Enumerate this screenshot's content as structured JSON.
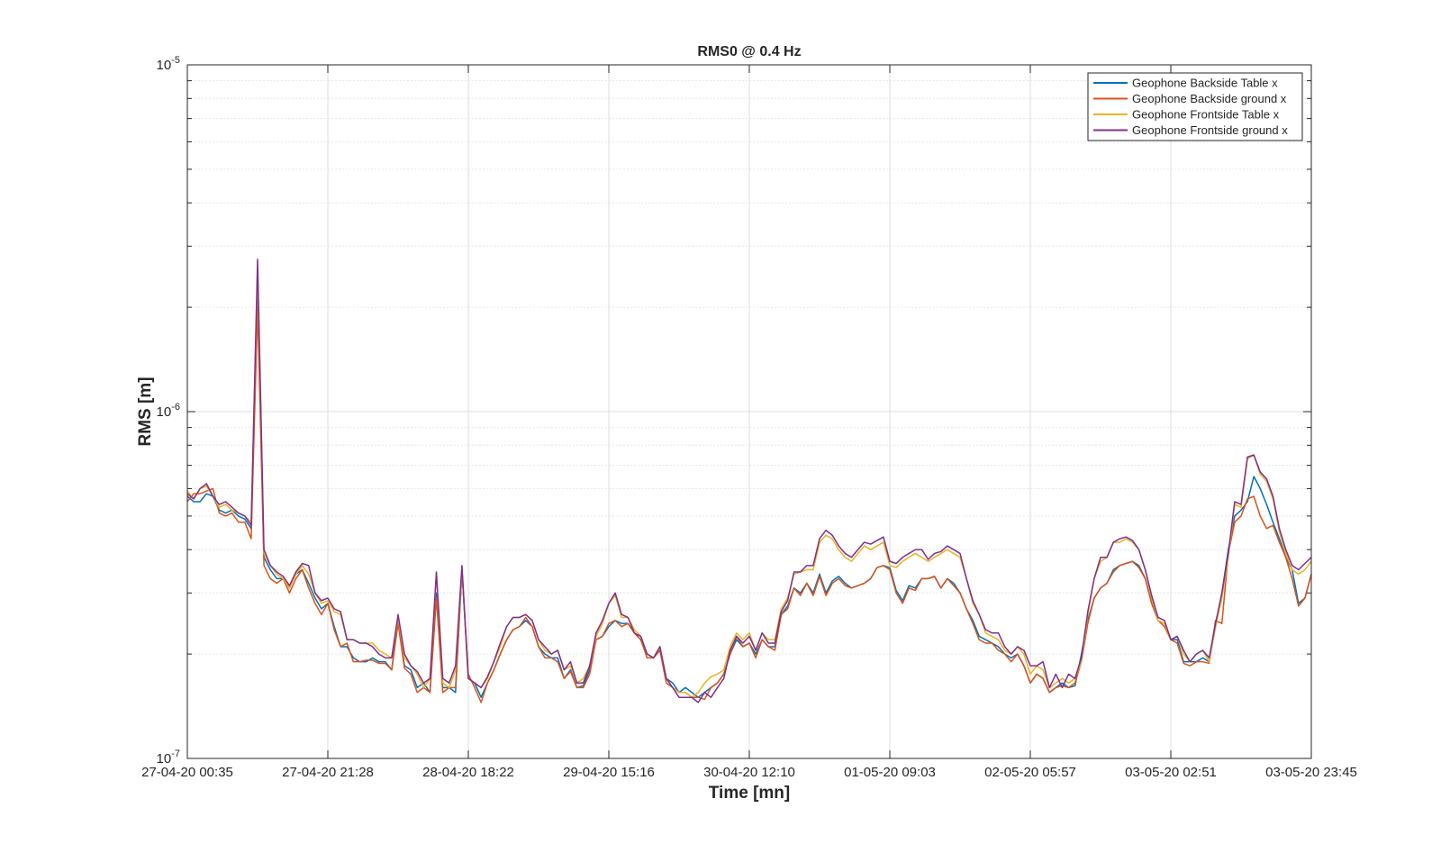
{
  "chart_data": {
    "type": "line",
    "title": "RMS0 @ 0.4 Hz",
    "xlabel": "Time [mn]",
    "ylabel": "RMS [m]",
    "yscale": "log",
    "ylim": [
      1e-07,
      1e-05
    ],
    "ytick_base": "10",
    "yticks": [
      {
        "exp": "-7",
        "value": 1e-07
      },
      {
        "exp": "-6",
        "value": 1e-06
      },
      {
        "exp": "-5",
        "value": 1e-05
      }
    ],
    "xlim": [
      "27-04-20 00:35",
      "03-05-20 23:45"
    ],
    "xticks": [
      "27-04-20 00:35",
      "27-04-20 21:28",
      "28-04-20 18:22",
      "29-04-20 15:16",
      "30-04-20 12:10",
      "01-05-20 09:03",
      "02-05-20 05:57",
      "03-05-20 02:51",
      "03-05-20 23:45"
    ],
    "grid": true,
    "legend_position": "top-right",
    "x_sample_interval": "00:35 steps of ~52 min over 27-04-20 00:35 to 03-05-20 23:45",
    "series": [
      {
        "name": "Geophone Backside Table x",
        "color": "#0072BD",
        "values": [
          5.7e-07,
          5.5e-07,
          5.5e-07,
          5.8e-07,
          5.7e-07,
          5.2e-07,
          5.1e-07,
          5.2e-07,
          5e-07,
          4.9e-07,
          4.6e-07,
          2.5e-06,
          3.8e-07,
          3.5e-07,
          3.3e-07,
          3.3e-07,
          3.1e-07,
          3.4e-07,
          3.5e-07,
          3.2e-07,
          2.9e-07,
          2.7e-07,
          2.8e-07,
          2.4e-07,
          2.1e-07,
          2.1e-07,
          1.95e-07,
          1.9e-07,
          1.9e-07,
          1.95e-07,
          1.9e-07,
          1.9e-07,
          1.8e-07,
          2.5e-07,
          1.85e-07,
          1.8e-07,
          1.6e-07,
          1.65e-07,
          1.55e-07,
          3e-07,
          1.6e-07,
          1.6e-07,
          1.55e-07,
          3.5e-07,
          1.7e-07,
          1.65e-07,
          1.5e-07,
          1.65e-07,
          1.8e-07,
          2e-07,
          2.2e-07,
          2.35e-07,
          2.4e-07,
          2.5e-07,
          2.4e-07,
          2.1e-07,
          2e-07,
          1.95e-07,
          1.95e-07,
          1.7e-07,
          1.8e-07,
          1.6e-07,
          1.62e-07,
          1.8e-07,
          2.2e-07,
          2.25e-07,
          2.4e-07,
          2.5e-07,
          2.45e-07,
          2.45e-07,
          2.3e-07,
          2.2e-07,
          2e-07,
          1.95e-07,
          2.05e-07,
          1.7e-07,
          1.65e-07,
          1.55e-07,
          1.6e-07,
          1.55e-07,
          1.5e-07,
          1.55e-07,
          1.6e-07,
          1.65e-07,
          1.75e-07,
          2e-07,
          2.2e-07,
          2.1e-07,
          2.15e-07,
          2e-07,
          2.2e-07,
          2.1e-07,
          2.1e-07,
          2.6e-07,
          2.75e-07,
          3.1e-07,
          3e-07,
          3.2e-07,
          3e-07,
          3.4e-07,
          3e-07,
          3.25e-07,
          3.35e-07,
          3.2e-07,
          3.1e-07,
          3.15e-07,
          3.2e-07,
          3.3e-07,
          3.55e-07,
          3.6e-07,
          3.55e-07,
          3.05e-07,
          2.85e-07,
          3.15e-07,
          3.1e-07,
          3.3e-07,
          3.3e-07,
          3.35e-07,
          3.1e-07,
          3.3e-07,
          3.2e-07,
          3e-07,
          2.7e-07,
          2.5e-07,
          2.25e-07,
          2.2e-07,
          2.15e-07,
          2.1e-07,
          2e-07,
          1.95e-07,
          2e-07,
          1.85e-07,
          1.65e-07,
          1.75e-07,
          1.7e-07,
          1.55e-07,
          1.6e-07,
          1.65e-07,
          1.6e-07,
          1.62e-07,
          2e-07,
          2.5e-07,
          2.9e-07,
          3.1e-07,
          3.2e-07,
          3.5e-07,
          3.6e-07,
          3.65e-07,
          3.7e-07,
          3.6e-07,
          3.3e-07,
          2.8e-07,
          2.5e-07,
          2.45e-07,
          2.2e-07,
          2.2e-07,
          1.9e-07,
          1.9e-07,
          1.9e-07,
          1.95e-07,
          1.9e-07,
          2.4e-07,
          3e-07,
          4e-07,
          5e-07,
          5.2e-07,
          5.5e-07,
          6.5e-07,
          6e-07,
          5.4e-07,
          4.8e-07,
          4.3e-07,
          3.8e-07,
          3.5e-07,
          2.8e-07,
          2.9e-07,
          3.4e-07
        ]
      },
      {
        "name": "Geophone Backside ground x",
        "color": "#D95319",
        "values": [
          5.5e-07,
          5.8e-07,
          5.8e-07,
          5.9e-07,
          6e-07,
          5.1e-07,
          5e-07,
          5.1e-07,
          4.8e-07,
          4.8e-07,
          4.3e-07,
          2e-06,
          3.6e-07,
          3.3e-07,
          3.2e-07,
          3.3e-07,
          3e-07,
          3.3e-07,
          3.5e-07,
          3.1e-07,
          2.8e-07,
          2.6e-07,
          2.8e-07,
          2.35e-07,
          2.1e-07,
          2.15e-07,
          1.9e-07,
          1.9e-07,
          1.92e-07,
          1.92e-07,
          1.88e-07,
          1.88e-07,
          1.8e-07,
          2.45e-07,
          1.82e-07,
          1.75e-07,
          1.55e-07,
          1.6e-07,
          1.55e-07,
          2.9e-07,
          1.55e-07,
          1.6e-07,
          1.6e-07,
          3.5e-07,
          1.75e-07,
          1.6e-07,
          1.45e-07,
          1.65e-07,
          1.8e-07,
          2e-07,
          2.2e-07,
          2.35e-07,
          2.4e-07,
          2.55e-07,
          2.4e-07,
          2.1e-07,
          1.95e-07,
          1.95e-07,
          1.9e-07,
          1.7e-07,
          1.78e-07,
          1.6e-07,
          1.6e-07,
          1.75e-07,
          2.2e-07,
          2.25e-07,
          2.45e-07,
          2.5e-07,
          2.4e-07,
          2.45e-07,
          2.3e-07,
          2.2e-07,
          1.95e-07,
          1.95e-07,
          2.05e-07,
          1.65e-07,
          1.6e-07,
          1.55e-07,
          1.55e-07,
          1.5e-07,
          1.5e-07,
          1.48e-07,
          1.6e-07,
          1.65e-07,
          1.75e-07,
          2e-07,
          2.25e-07,
          2.1e-07,
          2.15e-07,
          1.95e-07,
          2.2e-07,
          2.1e-07,
          2.05e-07,
          2.6e-07,
          2.7e-07,
          3.1e-07,
          2.95e-07,
          3.2e-07,
          2.95e-07,
          3.35e-07,
          2.95e-07,
          3.2e-07,
          3.3e-07,
          3.15e-07,
          3.1e-07,
          3.15e-07,
          3.2e-07,
          3.3e-07,
          3.55e-07,
          3.6e-07,
          3.5e-07,
          3e-07,
          2.8e-07,
          3.1e-07,
          3.05e-07,
          3.3e-07,
          3.3e-07,
          3.35e-07,
          3.1e-07,
          3.3e-07,
          3.15e-07,
          3e-07,
          2.7e-07,
          2.45e-07,
          2.2e-07,
          2.15e-07,
          2.15e-07,
          2.05e-07,
          2e-07,
          1.9e-07,
          2e-07,
          1.85e-07,
          1.65e-07,
          1.75e-07,
          1.7e-07,
          1.55e-07,
          1.6e-07,
          1.62e-07,
          1.6e-07,
          1.65e-07,
          1.9e-07,
          2.45e-07,
          2.9e-07,
          3.1e-07,
          3.2e-07,
          3.45e-07,
          3.6e-07,
          3.65e-07,
          3.7e-07,
          3.55e-07,
          3.3e-07,
          2.8e-07,
          2.5e-07,
          2.4e-07,
          2.2e-07,
          2.15e-07,
          1.88e-07,
          1.85e-07,
          1.9e-07,
          1.9e-07,
          1.88e-07,
          2.5e-07,
          2.45e-07,
          3.9e-07,
          4.8e-07,
          5e-07,
          5.6e-07,
          5.7e-07,
          5e-07,
          4.6e-07,
          4.7e-07,
          4.2e-07,
          3.8e-07,
          3.3e-07,
          2.75e-07,
          2.9e-07,
          3.4e-07
        ]
      },
      {
        "name": "Geophone Frontside Table x",
        "color": "#EDB120",
        "values": [
          5.9e-07,
          5.6e-07,
          6e-07,
          6.1e-07,
          5.7e-07,
          5.3e-07,
          5.4e-07,
          5.2e-07,
          5.1e-07,
          5e-07,
          4.8e-07,
          2.6e-06,
          3.9e-07,
          3.6e-07,
          3.4e-07,
          3.3e-07,
          3.1e-07,
          3.4e-07,
          3.6e-07,
          3.4e-07,
          3e-07,
          2.8e-07,
          2.85e-07,
          2.65e-07,
          2.6e-07,
          2.2e-07,
          2.2e-07,
          2.15e-07,
          2.15e-07,
          2.15e-07,
          2.05e-07,
          2e-07,
          1.95e-07,
          2.55e-07,
          1.95e-07,
          1.85e-07,
          1.75e-07,
          1.6e-07,
          1.7e-07,
          3.4e-07,
          1.65e-07,
          1.6e-07,
          1.8e-07,
          3.55e-07,
          1.7e-07,
          1.65e-07,
          1.6e-07,
          1.7e-07,
          1.9e-07,
          2.1e-07,
          2.4e-07,
          2.55e-07,
          2.55e-07,
          2.6e-07,
          2.5e-07,
          2.2e-07,
          2.05e-07,
          2e-07,
          2.05e-07,
          1.8e-07,
          1.85e-07,
          1.65e-07,
          1.7e-07,
          1.85e-07,
          2.25e-07,
          2.45e-07,
          2.8e-07,
          2.95e-07,
          2.55e-07,
          2.55e-07,
          2.35e-07,
          2.25e-07,
          2e-07,
          1.95e-07,
          2.1e-07,
          1.7e-07,
          1.6e-07,
          1.55e-07,
          1.55e-07,
          1.5e-07,
          1.55e-07,
          1.65e-07,
          1.72e-07,
          1.75e-07,
          1.8e-07,
          2.1e-07,
          2.3e-07,
          2.2e-07,
          2.3e-07,
          2.05e-07,
          2.3e-07,
          2.2e-07,
          2.2e-07,
          2.7e-07,
          2.9e-07,
          3.4e-07,
          3.45e-07,
          3.5e-07,
          3.5e-07,
          4.2e-07,
          4.4e-07,
          4.3e-07,
          4e-07,
          3.8e-07,
          3.7e-07,
          3.9e-07,
          4.1e-07,
          4e-07,
          4.1e-07,
          4.2e-07,
          3.6e-07,
          3.55e-07,
          3.7e-07,
          3.8e-07,
          3.9e-07,
          3.8e-07,
          3.7e-07,
          3.8e-07,
          3.9e-07,
          4e-07,
          3.9e-07,
          3.8e-07,
          3.3e-07,
          2.8e-07,
          2.6e-07,
          2.3e-07,
          2.25e-07,
          2.2e-07,
          2.05e-07,
          2e-07,
          2.1e-07,
          2e-07,
          1.75e-07,
          1.85e-07,
          1.8e-07,
          1.6e-07,
          1.65e-07,
          1.7e-07,
          1.65e-07,
          1.7e-07,
          1.9e-07,
          2.6e-07,
          3.3e-07,
          3.7e-07,
          3.8e-07,
          4.2e-07,
          4.2e-07,
          4.3e-07,
          4.2e-07,
          4e-07,
          3.5e-07,
          2.9e-07,
          2.5e-07,
          2.45e-07,
          2.2e-07,
          2.25e-07,
          2e-07,
          1.9e-07,
          2e-07,
          2.05e-07,
          1.9e-07,
          2.4e-07,
          2.9e-07,
          3.8e-07,
          5.4e-07,
          5.3e-07,
          7.3e-07,
          7.5e-07,
          6.6e-07,
          6.3e-07,
          5.6e-07,
          4.5e-07,
          3.9e-07,
          3.5e-07,
          3.4e-07,
          3.5e-07,
          3.7e-07
        ]
      },
      {
        "name": "Geophone Frontside ground x",
        "color": "#7E2F8E",
        "values": [
          5.8e-07,
          5.6e-07,
          6e-07,
          6.2e-07,
          5.7e-07,
          5.4e-07,
          5.5e-07,
          5.3e-07,
          5.1e-07,
          5e-07,
          4.7e-07,
          2.75e-06,
          4e-07,
          3.6e-07,
          3.45e-07,
          3.35e-07,
          3.15e-07,
          3.45e-07,
          3.65e-07,
          3.6e-07,
          3e-07,
          2.85e-07,
          2.9e-07,
          2.7e-07,
          2.65e-07,
          2.2e-07,
          2.2e-07,
          2.15e-07,
          2.15e-07,
          2.1e-07,
          2e-07,
          1.95e-07,
          1.95e-07,
          2.6e-07,
          2e-07,
          1.85e-07,
          1.78e-07,
          1.65e-07,
          1.7e-07,
          3.45e-07,
          1.7e-07,
          1.65e-07,
          1.85e-07,
          3.6e-07,
          1.7e-07,
          1.65e-07,
          1.6e-07,
          1.72e-07,
          1.9e-07,
          2.15e-07,
          2.4e-07,
          2.55e-07,
          2.55e-07,
          2.6e-07,
          2.5e-07,
          2.2e-07,
          2.1e-07,
          2e-07,
          2.05e-07,
          1.8e-07,
          1.9e-07,
          1.65e-07,
          1.65e-07,
          1.85e-07,
          2.3e-07,
          2.5e-07,
          2.8e-07,
          3e-07,
          2.6e-07,
          2.55e-07,
          2.3e-07,
          2.25e-07,
          2e-07,
          1.95e-07,
          2.1e-07,
          1.7e-07,
          1.6e-07,
          1.5e-07,
          1.5e-07,
          1.5e-07,
          1.45e-07,
          1.55e-07,
          1.5e-07,
          1.6e-07,
          1.7e-07,
          2.05e-07,
          2.25e-07,
          2.15e-07,
          2.25e-07,
          2.05e-07,
          2.3e-07,
          2.15e-07,
          2.15e-07,
          2.65e-07,
          2.85e-07,
          3.45e-07,
          3.45e-07,
          3.6e-07,
          3.6e-07,
          4.3e-07,
          4.55e-07,
          4.4e-07,
          4.1e-07,
          3.9e-07,
          3.8e-07,
          4e-07,
          4.2e-07,
          4.15e-07,
          4.25e-07,
          4.35e-07,
          3.7e-07,
          3.65e-07,
          3.8e-07,
          3.9e-07,
          4e-07,
          4e-07,
          3.75e-07,
          3.9e-07,
          3.95e-07,
          4.1e-07,
          4e-07,
          3.9e-07,
          3.3e-07,
          2.85e-07,
          2.6e-07,
          2.35e-07,
          2.3e-07,
          2.3e-07,
          2.1e-07,
          2e-07,
          2.1e-07,
          2.05e-07,
          1.85e-07,
          1.85e-07,
          1.9e-07,
          1.6e-07,
          1.75e-07,
          1.6e-07,
          1.75e-07,
          1.7e-07,
          1.95e-07,
          2.65e-07,
          3.3e-07,
          3.8e-07,
          3.8e-07,
          4.2e-07,
          4.3e-07,
          4.35e-07,
          4.25e-07,
          4e-07,
          3.5e-07,
          2.95e-07,
          2.55e-07,
          2.5e-07,
          2.2e-07,
          2.25e-07,
          2.05e-07,
          1.9e-07,
          2e-07,
          2.05e-07,
          1.95e-07,
          2.45e-07,
          3e-07,
          3.9e-07,
          5.5e-07,
          5.4e-07,
          7.4e-07,
          7.5e-07,
          6.7e-07,
          6.4e-07,
          5.7e-07,
          4.6e-07,
          4e-07,
          3.6e-07,
          3.5e-07,
          3.65e-07,
          3.8e-07
        ]
      }
    ]
  }
}
